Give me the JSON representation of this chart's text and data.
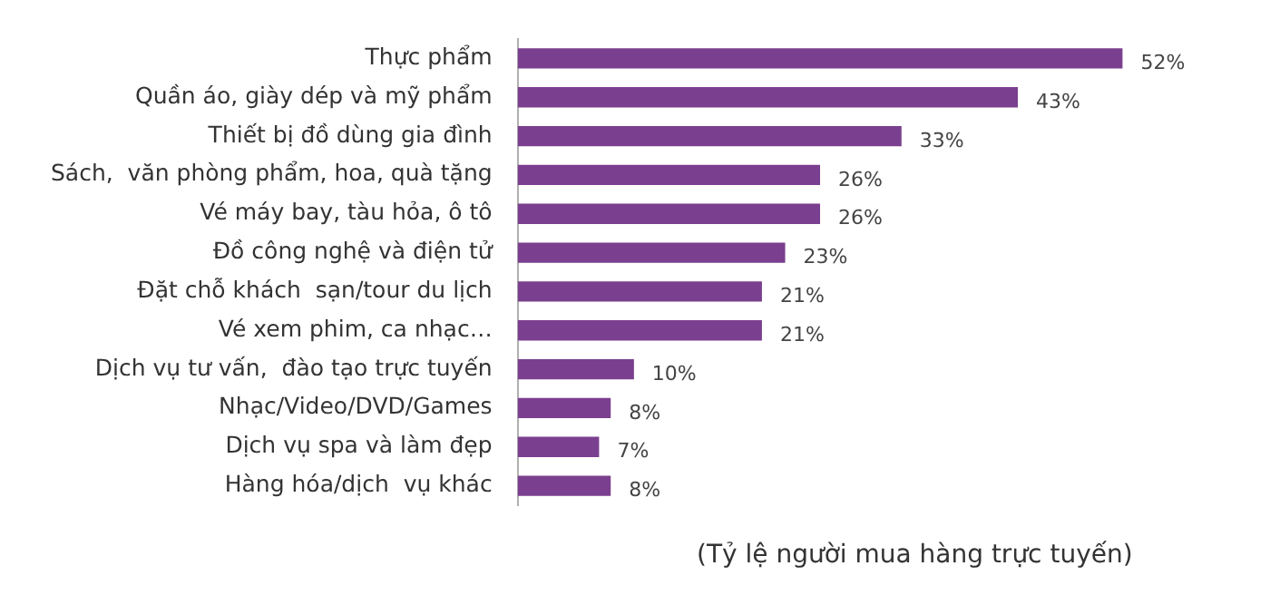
{
  "chart_data": {
    "type": "bar",
    "orientation": "horizontal",
    "categories": [
      "Thực phẩm",
      "Quần áo, giày dép và mỹ phẩm",
      "Thiết bị đồ dùng gia đình",
      "Sách,  văn phòng phẩm, hoa, quà tặng",
      "Vé máy bay, tàu hỏa, ô tô",
      "Đồ công nghệ và điện tử",
      "Đặt chỗ khách  sạn/tour du lịch",
      "Vé xem phim, ca nhạc…",
      "Dịch vụ tư vấn,  đào tạo trực tuyến",
      "Nhạc/Video/DVD/Games",
      "Dịch vụ spa và làm đẹp",
      "Hàng hóa/dịch  vụ khác"
    ],
    "values": [
      52,
      43,
      33,
      26,
      26,
      23,
      21,
      21,
      10,
      8,
      7,
      8
    ],
    "value_labels": [
      "52%",
      "43%",
      "33%",
      "26%",
      "26%",
      "23%",
      "21%",
      "21%",
      "10%",
      "8%",
      "7%",
      "8%"
    ],
    "color": "#7b3f8f",
    "tick_labels": "y",
    "grid": false,
    "legend": false,
    "annotations": [
      "(Tỷ lệ người mua hàng trực tuyến)"
    ]
  }
}
